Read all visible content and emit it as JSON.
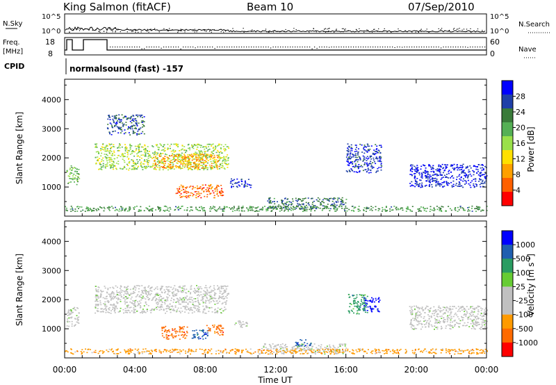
{
  "header": {
    "station": "King Salmon (fitACF)",
    "beam": "Beam 10",
    "date": "07/Sep/2010"
  },
  "top_panels": {
    "nsky_label": "N.Sky",
    "nsearch_label": "N.Search",
    "nsky_ticks": [
      "10^5",
      "10^0"
    ],
    "nsearch_ticks": [
      "10^5",
      "10^0"
    ],
    "freq_label": "Freq.",
    "freq_unit": "[MHz]",
    "freq_ticks": [
      "18",
      "8"
    ],
    "nave_label": "Nave",
    "nave_ticks": [
      "60",
      "0"
    ],
    "cpid_label": "CPID",
    "cpid_text": "normalsound (fast) -157"
  },
  "colors": {
    "power_scale": [
      "#0000ff",
      "#1f3fa8",
      "#3a7b3a",
      "#55b055",
      "#9ae04a",
      "#ffe000",
      "#ffa000",
      "#ff6000",
      "#ff0000"
    ],
    "velocity_scale": [
      "#0000ff",
      "#1f5fb0",
      "#2a9c62",
      "#66cc33",
      "#c0c0c0",
      "#c0c0c0",
      "#ff9a00",
      "#ff6a00",
      "#ff0000"
    ]
  },
  "chart_data": [
    {
      "type": "heatmap",
      "name": "power",
      "ylabel": "Slant Range [km]",
      "yticks": [
        "1000",
        "2000",
        "3000",
        "4000"
      ],
      "ylim": [
        0,
        4700
      ],
      "xlim": [
        0,
        24
      ],
      "colorbar_label": "Power [dB]",
      "colorbar_ticks": [
        "4",
        "8",
        "12",
        "16",
        "20",
        "24",
        "28"
      ],
      "regions": [
        {
          "x": [
            0.1,
            0.8
          ],
          "y": [
            1100,
            1750
          ],
          "level": 0.4
        },
        {
          "x": [
            1.7,
            9.3
          ],
          "y": [
            1600,
            2500
          ],
          "level": 0.5
        },
        {
          "x": [
            5.0,
            8.8
          ],
          "y": [
            1650,
            2150
          ],
          "level": 0.75
        },
        {
          "x": [
            6.3,
            9.0
          ],
          "y": [
            650,
            1100
          ],
          "level": 0.85
        },
        {
          "x": [
            2.4,
            4.5
          ],
          "y": [
            2800,
            3500
          ],
          "level": 0.15
        },
        {
          "x": [
            9.4,
            10.6
          ],
          "y": [
            1000,
            1300
          ],
          "level": 0.1
        },
        {
          "x": [
            11.5,
            16.0
          ],
          "y": [
            250,
            650
          ],
          "level": 0.2
        },
        {
          "x": [
            16.0,
            18.0
          ],
          "y": [
            1500,
            2500
          ],
          "level": 0.1
        },
        {
          "x": [
            19.6,
            24.0
          ],
          "y": [
            1000,
            1800
          ],
          "level": 0.05
        },
        {
          "x": [
            0.0,
            24.0
          ],
          "y": [
            180,
            360
          ],
          "level": 0.3
        }
      ]
    },
    {
      "type": "heatmap",
      "name": "velocity",
      "ylabel": "Slant Range [km]",
      "yticks": [
        "1000",
        "2000",
        "3000",
        "4000"
      ],
      "ylim": [
        0,
        4700
      ],
      "xlim": [
        0,
        24
      ],
      "xlabel": "Time UT",
      "xticks": [
        "00:00",
        "04:00",
        "08:00",
        "12:00",
        "16:00",
        "20:00",
        "00:00"
      ],
      "colorbar_label": "Velocity [m s",
      "colorbar_label_sup": "-1",
      "colorbar_label_end": "]",
      "colorbar_ticks": [
        "1000",
        "500",
        "100",
        "25",
        "-25",
        "-100",
        "-500",
        "-1000"
      ],
      "regions": [
        {
          "x": [
            0.1,
            0.8
          ],
          "y": [
            1100,
            1750
          ],
          "v": 0
        },
        {
          "x": [
            1.7,
            9.3
          ],
          "y": [
            1550,
            2500
          ],
          "v": 0
        },
        {
          "x": [
            5.5,
            7.0
          ],
          "y": [
            650,
            1100
          ],
          "v": -200
        },
        {
          "x": [
            7.2,
            8.2
          ],
          "y": [
            650,
            1000
          ],
          "v": 150
        },
        {
          "x": [
            8.0,
            9.0
          ],
          "y": [
            800,
            1150
          ],
          "v": -300
        },
        {
          "x": [
            9.6,
            10.4
          ],
          "y": [
            1050,
            1300
          ],
          "v": 0
        },
        {
          "x": [
            11.0,
            16.0
          ],
          "y": [
            150,
            500
          ],
          "v": 0
        },
        {
          "x": [
            13.1,
            14.0
          ],
          "y": [
            400,
            650
          ],
          "v": 150
        },
        {
          "x": [
            16.1,
            17.2
          ],
          "y": [
            1500,
            2200
          ],
          "v": 30
        },
        {
          "x": [
            17.0,
            17.9
          ],
          "y": [
            1600,
            2100
          ],
          "v": 900
        },
        {
          "x": [
            19.6,
            24.0
          ],
          "y": [
            1000,
            1800
          ],
          "v": 0
        },
        {
          "x": [
            0.0,
            24.0
          ],
          "y": [
            150,
            330
          ],
          "v": -80
        }
      ]
    }
  ]
}
